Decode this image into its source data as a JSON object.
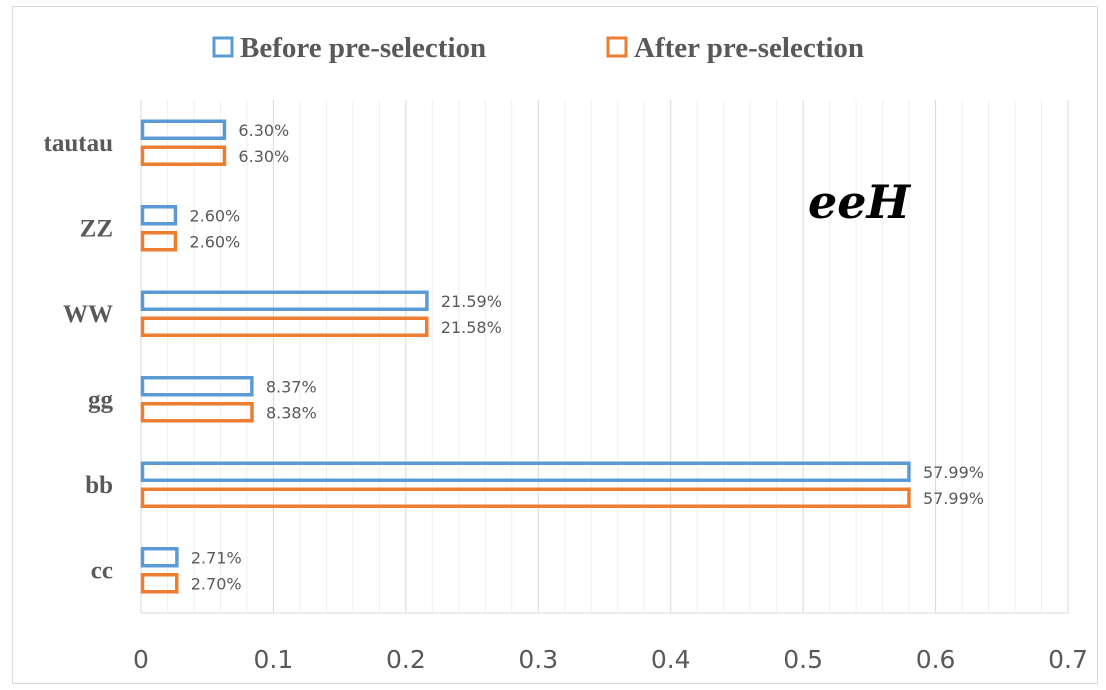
{
  "chart_data": {
    "type": "bar",
    "orientation": "horizontal",
    "categories": [
      "tautau",
      "ZZ",
      "WW",
      "gg",
      "bb",
      "cc"
    ],
    "series": [
      {
        "name": "Before pre-selection",
        "color": "#5b9bd5",
        "values": [
          0.063,
          0.026,
          0.2159,
          0.0837,
          0.5799,
          0.0271
        ],
        "labels": [
          "6.30%",
          "2.60%",
          "21.59%",
          "8.37%",
          "57.99%",
          "2.71%"
        ]
      },
      {
        "name": "After pre-selection",
        "color": "#ed7d31",
        "values": [
          0.063,
          0.026,
          0.2158,
          0.0838,
          0.5799,
          0.027
        ],
        "labels": [
          "6.30%",
          "2.60%",
          "21.58%",
          "8.38%",
          "57.99%",
          "2.70%"
        ]
      }
    ],
    "xlim": [
      0,
      0.7
    ],
    "xticks": [
      "0",
      "0.1",
      "0.2",
      "0.3",
      "0.4",
      "0.5",
      "0.6",
      "0.7"
    ],
    "annotation": "eeH",
    "legend_position": "top",
    "grid": "vertical"
  }
}
